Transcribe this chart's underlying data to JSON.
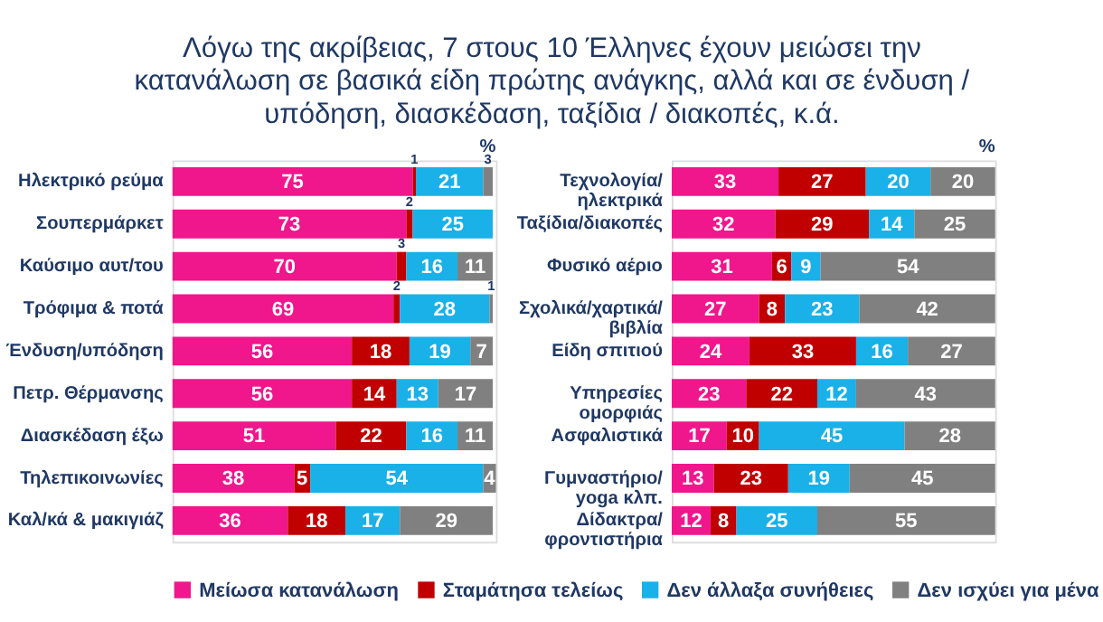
{
  "chart_data": [
    {
      "type": "bar",
      "orientation": "horizontal",
      "stacked": true,
      "data_labels": true,
      "legend": "bottom",
      "grid": false,
      "title": "Λόγω της ακρίβειας, 7 στους 10 Έλληνες έχουν μειώσει την κατανάλωση σε βασικά είδη πρώτης ανάγκης, αλλά και σε ένδυση / υπόδηση, διασκέδαση, ταξίδια / διακοπές, κ.ά.",
      "annotations": [
        "%"
      ],
      "categories": [
        "Ηλεκτρικό ρεύμα",
        "Σουπερμάρκετ",
        "Καύσιμο αυτ/του",
        "Τρόφιμα & ποτά",
        "Ένδυση/υπόδηση",
        "Πετρ. Θέρμανσης",
        "Διασκέδαση έξω",
        "Τηλεπικοινωνίες",
        "Καλ/κά & μακιγιάζ"
      ],
      "series": [
        {
          "name": "Μείωσα κατανάλωση",
          "color": "#f0168c",
          "values": [
            75,
            73,
            70,
            69,
            56,
            56,
            51,
            38,
            36
          ]
        },
        {
          "name": "Σταμάτησα τελείως",
          "color": "#c00000",
          "values": [
            1,
            2,
            3,
            2,
            18,
            14,
            22,
            5,
            18
          ]
        },
        {
          "name": "Δεν άλλαξα συνήθειες",
          "color": "#1ab0e8",
          "values": [
            21,
            25,
            16,
            28,
            19,
            13,
            16,
            54,
            17
          ]
        },
        {
          "name": "Δεν ισχύει για μένα",
          "color": "#808080",
          "values": [
            3,
            null,
            11,
            1,
            7,
            17,
            11,
            4,
            29
          ]
        }
      ]
    },
    {
      "type": "bar",
      "orientation": "horizontal",
      "stacked": true,
      "data_labels": true,
      "legend": "bottom",
      "grid": false,
      "annotations": [
        "%"
      ],
      "categories": [
        "Τεχνολογία/\nηλεκτρικά",
        "Ταξίδια/διακοπές",
        "Φυσικό αέριο",
        "Σχολικά/χαρτικά/\nβιβλία",
        "Είδη σπιτιού",
        "Υπηρεσίες\nομορφιάς",
        "Ασφαλιστικά",
        "Γυμναστήριο/\nyoga κλπ.",
        "Δίδακτρα/\nφροντιστήρια"
      ],
      "series": [
        {
          "name": "Μείωσα κατανάλωση",
          "color": "#f0168c",
          "values": [
            33,
            32,
            31,
            27,
            24,
            23,
            17,
            13,
            12
          ]
        },
        {
          "name": "Σταμάτησα τελείως",
          "color": "#c00000",
          "values": [
            27,
            29,
            6,
            8,
            33,
            22,
            10,
            23,
            8
          ]
        },
        {
          "name": "Δεν άλλαξα συνήθειες",
          "color": "#1ab0e8",
          "values": [
            20,
            14,
            9,
            23,
            16,
            12,
            45,
            19,
            25
          ]
        },
        {
          "name": "Δεν ισχύει για μένα",
          "color": "#808080",
          "values": [
            20,
            25,
            54,
            42,
            27,
            43,
            28,
            45,
            55
          ]
        }
      ]
    }
  ]
}
